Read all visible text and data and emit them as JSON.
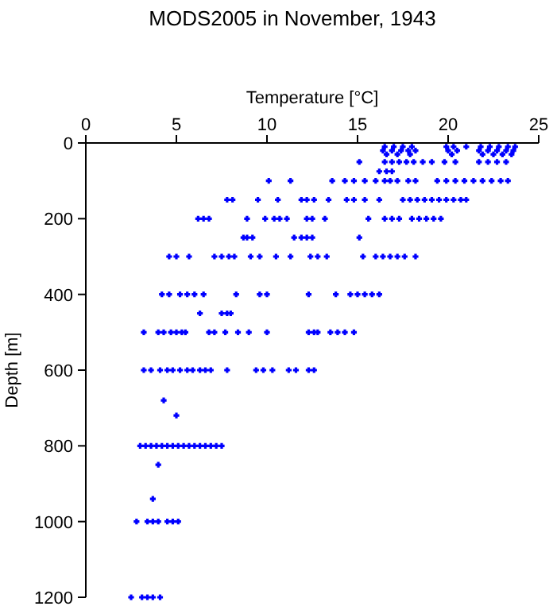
{
  "chart_data": {
    "type": "scatter",
    "title": "MODS2005 in November, 1943",
    "xlabel": "Temperature [°C]",
    "ylabel": "Depth [m]",
    "xlim": [
      0,
      25
    ],
    "xticks": [
      0,
      5,
      10,
      15,
      20,
      25
    ],
    "ylim": [
      1200,
      0
    ],
    "yticks": [
      0,
      200,
      400,
      600,
      800,
      1000,
      1200
    ],
    "marker": "cross",
    "series": [
      {
        "color": "#0000ff",
        "x": [
          16.5,
          17.0,
          17.5,
          18.0,
          19.9,
          20.3,
          21.0,
          21.8,
          22.3,
          22.8,
          23.3,
          23.7,
          16.4,
          16.9,
          17.4,
          17.8,
          18.2,
          20.0,
          20.5,
          21.7,
          22.2,
          22.7,
          23.2,
          23.6,
          16.6,
          17.2,
          17.9,
          20.2,
          21.9,
          22.5,
          23.0,
          23.5,
          15.1,
          16.5,
          16.9,
          17.3,
          17.7,
          18.1,
          18.6,
          19.1,
          19.8,
          20.4,
          21.7,
          22.2,
          22.7,
          23.2,
          16.2,
          16.6,
          16.9,
          10.1,
          11.3,
          13.6,
          14.3,
          14.8,
          15.4,
          16.0,
          16.5,
          16.8,
          17.2,
          17.8,
          18.2,
          19.4,
          19.9,
          20.4,
          20.9,
          21.4,
          21.9,
          22.4,
          22.9,
          23.3,
          7.8,
          8.1,
          9.5,
          10.6,
          11.9,
          12.2,
          12.6,
          13.4,
          14.4,
          14.8,
          15.4,
          16.2,
          17.5,
          17.9,
          18.3,
          18.7,
          19.1,
          19.5,
          19.9,
          20.3,
          20.7,
          21.0,
          6.2,
          6.5,
          6.8,
          8.9,
          9.9,
          10.4,
          10.7,
          11.1,
          12.2,
          12.5,
          13.2,
          15.6,
          16.5,
          16.9,
          17.3,
          18.0,
          18.4,
          18.8,
          19.2,
          19.6,
          8.7,
          8.9,
          9.2,
          11.5,
          11.9,
          12.2,
          12.5,
          15.1,
          4.6,
          5.0,
          5.7,
          7.1,
          7.5,
          7.9,
          8.2,
          9.1,
          9.6,
          10.5,
          11.3,
          12.4,
          12.8,
          13.3,
          15.3,
          16.0,
          16.4,
          16.8,
          17.2,
          17.6,
          18.2,
          4.2,
          4.6,
          5.2,
          5.6,
          6.0,
          6.5,
          8.3,
          9.6,
          10.0,
          12.3,
          13.8,
          14.6,
          15.0,
          15.4,
          15.8,
          16.2,
          6.3,
          7.5,
          7.8,
          8.0,
          3.2,
          4.0,
          4.3,
          4.7,
          5.0,
          5.3,
          5.5,
          6.8,
          7.1,
          7.7,
          8.4,
          9.0,
          10.0,
          12.3,
          12.6,
          12.8,
          13.5,
          13.9,
          14.3,
          14.8,
          3.2,
          3.6,
          4.1,
          4.5,
          4.8,
          5.2,
          5.6,
          5.9,
          6.3,
          6.6,
          6.9,
          7.8,
          9.4,
          9.8,
          10.3,
          11.2,
          11.6,
          12.3,
          12.6,
          4.3,
          5.0,
          3.0,
          3.3,
          3.6,
          3.9,
          4.2,
          4.5,
          4.8,
          5.1,
          5.4,
          5.7,
          6.0,
          6.3,
          6.6,
          6.9,
          7.2,
          7.5,
          4.0,
          3.7,
          2.8,
          3.4,
          3.7,
          4.0,
          4.5,
          4.8,
          5.1,
          2.5,
          3.1,
          3.4,
          3.7,
          4.1
        ],
        "values": [
          10,
          10,
          10,
          10,
          10,
          10,
          10,
          10,
          10,
          10,
          10,
          10,
          20,
          20,
          20,
          20,
          20,
          20,
          20,
          20,
          20,
          20,
          20,
          20,
          30,
          30,
          30,
          30,
          30,
          30,
          30,
          30,
          50,
          50,
          50,
          50,
          50,
          50,
          50,
          50,
          50,
          50,
          50,
          50,
          50,
          50,
          75,
          75,
          75,
          100,
          100,
          100,
          100,
          100,
          100,
          100,
          100,
          100,
          100,
          100,
          100,
          100,
          100,
          100,
          100,
          100,
          100,
          100,
          100,
          100,
          150,
          150,
          150,
          150,
          150,
          150,
          150,
          150,
          150,
          150,
          150,
          150,
          150,
          150,
          150,
          150,
          150,
          150,
          150,
          150,
          150,
          150,
          200,
          200,
          200,
          200,
          200,
          200,
          200,
          200,
          200,
          200,
          200,
          200,
          200,
          200,
          200,
          200,
          200,
          200,
          200,
          200,
          250,
          250,
          250,
          250,
          250,
          250,
          250,
          250,
          300,
          300,
          300,
          300,
          300,
          300,
          300,
          300,
          300,
          300,
          300,
          300,
          300,
          300,
          300,
          300,
          300,
          300,
          300,
          300,
          300,
          400,
          400,
          400,
          400,
          400,
          400,
          400,
          400,
          400,
          400,
          400,
          400,
          400,
          400,
          400,
          400,
          450,
          450,
          450,
          450,
          500,
          500,
          500,
          500,
          500,
          500,
          500,
          500,
          500,
          500,
          500,
          500,
          500,
          500,
          500,
          500,
          500,
          500,
          500,
          500,
          600,
          600,
          600,
          600,
          600,
          600,
          600,
          600,
          600,
          600,
          600,
          600,
          600,
          600,
          600,
          600,
          600,
          600,
          600,
          680,
          720,
          800,
          800,
          800,
          800,
          800,
          800,
          800,
          800,
          800,
          800,
          800,
          800,
          800,
          800,
          800,
          800,
          850,
          940,
          1000,
          1000,
          1000,
          1000,
          1000,
          1000,
          1000,
          1200,
          1200,
          1200,
          1200,
          1200
        ]
      }
    ]
  }
}
